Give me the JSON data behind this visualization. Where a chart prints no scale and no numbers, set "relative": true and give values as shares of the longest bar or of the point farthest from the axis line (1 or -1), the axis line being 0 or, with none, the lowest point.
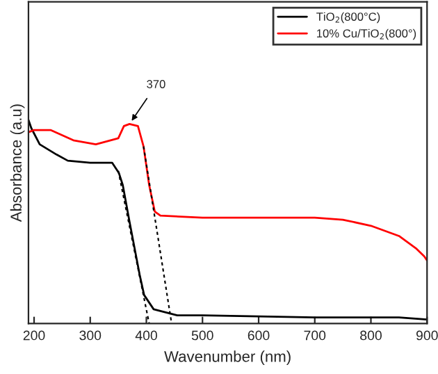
{
  "chart_data": {
    "type": "line",
    "relative": true,
    "xlabel": "Wavenumber (nm)",
    "ylabel": "Absorbance (a.u)",
    "xlim": [
      190,
      900
    ],
    "xticks": [
      200,
      300,
      400,
      500,
      600,
      700,
      800,
      900
    ],
    "tick_labels": "x",
    "legend": "top right",
    "grid": false,
    "marker": "none",
    "series": [
      {
        "name": "TiO$_{2}$(800°C)",
        "color": "#000000",
        "x": [
          190,
          195,
          210,
          240,
          260,
          300,
          339,
          351,
          358,
          370,
          388,
          396,
          413,
          455,
          500,
          700,
          850,
          900
        ],
        "values": [
          1.0,
          0.96,
          0.88,
          0.83,
          0.8,
          0.79,
          0.79,
          0.74,
          0.68,
          0.5,
          0.24,
          0.14,
          0.07,
          0.04,
          0.04,
          0.03,
          0.03,
          0.02
        ]
      },
      {
        "name": "10% Cu/TiO$_{2}$(800°)",
        "color": "#ff0000",
        "x": [
          190,
          200,
          230,
          270,
          310,
          350,
          360,
          370,
          385,
          395,
          405,
          415,
          425,
          500,
          700,
          750,
          800,
          850,
          880,
          895,
          900
        ],
        "values": [
          0.94,
          0.95,
          0.95,
          0.9,
          0.88,
          0.91,
          0.97,
          0.98,
          0.97,
          0.87,
          0.68,
          0.55,
          0.53,
          0.52,
          0.52,
          0.51,
          0.48,
          0.43,
          0.37,
          0.33,
          0.31
        ]
      },
      {
        "type": "line",
        "line_style": "dashed",
        "color": "#000000",
        "x": [
          350,
          405
        ],
        "values": [
          0.75,
          0
        ]
      },
      {
        "type": "line",
        "line_style": "dashed",
        "color": "#000000",
        "x": [
          395,
          445
        ],
        "values": [
          0.87,
          0
        ]
      }
    ],
    "annotations": [
      {
        "text": "370",
        "x": 370,
        "y": 0.98
      }
    ]
  }
}
